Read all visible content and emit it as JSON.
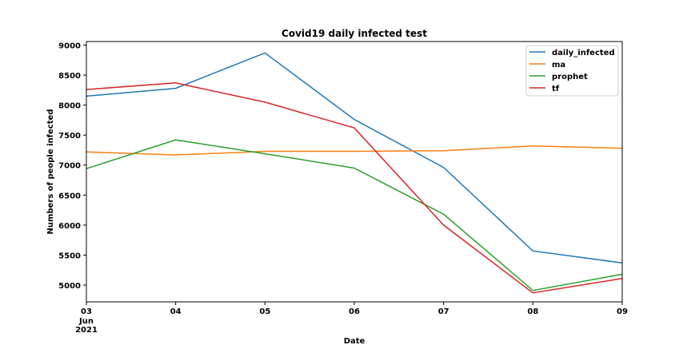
{
  "chart_data": {
    "type": "line",
    "title": "Covid19 daily infected test",
    "xlabel": "Date",
    "ylabel": "Numbers of people infected",
    "x": [
      "2021-06-03",
      "2021-06-04",
      "2021-06-05",
      "2021-06-06",
      "2021-06-07",
      "2021-06-08",
      "2021-06-09"
    ],
    "x_tick_labels": [
      "03",
      "04",
      "05",
      "06",
      "07",
      "08",
      "09"
    ],
    "x_tick_sublabel": [
      "Jun",
      "2021"
    ],
    "y_ticks": [
      5000,
      5500,
      6000,
      6500,
      7000,
      7500,
      8000,
      8500,
      9000
    ],
    "ylim": [
      4720,
      9060
    ],
    "grid": false,
    "legend_position": "top-right",
    "series": [
      {
        "name": "daily_infected",
        "color": "#1f77b4",
        "values": [
          8150,
          8280,
          8870,
          7760,
          6960,
          5570,
          5370
        ]
      },
      {
        "name": "ma",
        "color": "#ff7f0e",
        "values": [
          7220,
          7170,
          7230,
          7230,
          7240,
          7320,
          7280
        ]
      },
      {
        "name": "prophet",
        "color": "#2ca02c",
        "values": [
          6940,
          7420,
          7190,
          6950,
          6180,
          4910,
          5180
        ]
      },
      {
        "name": "tf",
        "color": "#d62728",
        "values": [
          8260,
          8370,
          8050,
          7620,
          6000,
          4870,
          5110
        ]
      }
    ]
  }
}
